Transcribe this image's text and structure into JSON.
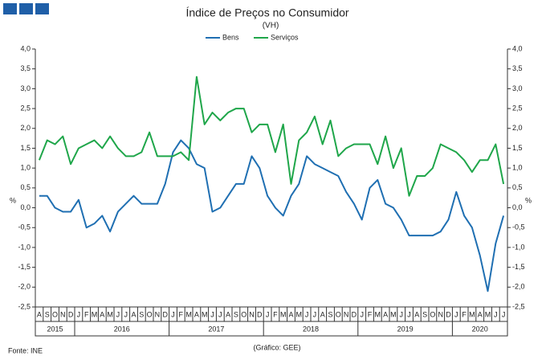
{
  "chart_data": {
    "type": "line",
    "title": "Índice de Preços no Consumidor",
    "subtitle": "(VH)",
    "y_label": "%",
    "y2_label": "%",
    "source": "Fonte: INE",
    "credit": "(Gráfico: GEE)",
    "categories": [
      "A",
      "S",
      "O",
      "N",
      "D",
      "J",
      "F",
      "M",
      "A",
      "M",
      "J",
      "J",
      "A",
      "S",
      "O",
      "N",
      "D",
      "J",
      "F",
      "M",
      "A",
      "M",
      "J",
      "J",
      "A",
      "S",
      "O",
      "N",
      "D",
      "J",
      "F",
      "M",
      "A",
      "M",
      "J",
      "J",
      "A",
      "S",
      "O",
      "N",
      "D",
      "J",
      "F",
      "M",
      "A",
      "M",
      "J",
      "J",
      "A",
      "S",
      "O",
      "N",
      "D",
      "J",
      "F",
      "M",
      "A",
      "M",
      "J",
      "J"
    ],
    "x_groups": [
      {
        "label": "2015",
        "count": 5
      },
      {
        "label": "2016",
        "count": 12
      },
      {
        "label": "2017",
        "count": 12
      },
      {
        "label": "2018",
        "count": 12
      },
      {
        "label": "2019",
        "count": 12
      },
      {
        "label": "2020",
        "count": 7
      }
    ],
    "series": [
      {
        "name": "Bens",
        "color": "#1f6fb2",
        "values": [
          0.3,
          0.3,
          0.0,
          -0.1,
          -0.1,
          0.2,
          -0.5,
          -0.4,
          -0.2,
          -0.6,
          -0.1,
          0.1,
          0.3,
          0.1,
          0.1,
          0.1,
          0.6,
          1.4,
          1.7,
          1.5,
          1.1,
          1.0,
          -0.1,
          0.0,
          0.3,
          0.6,
          0.6,
          1.3,
          1.0,
          0.3,
          0.0,
          -0.2,
          0.3,
          0.6,
          1.3,
          1.1,
          1.0,
          0.9,
          0.8,
          0.4,
          0.1,
          -0.3,
          0.5,
          0.7,
          0.1,
          0.0,
          -0.3,
          -0.7,
          -0.7,
          -0.7,
          -0.7,
          -0.6,
          -0.3,
          0.4,
          -0.2,
          -0.5,
          -1.2,
          -2.1,
          -0.9,
          -0.2
        ]
      },
      {
        "name": "Serviços",
        "color": "#1fa64a",
        "values": [
          1.2,
          1.7,
          1.6,
          1.8,
          1.1,
          1.5,
          1.6,
          1.7,
          1.5,
          1.8,
          1.5,
          1.3,
          1.3,
          1.4,
          1.9,
          1.3,
          1.3,
          1.3,
          1.4,
          1.2,
          3.3,
          2.1,
          2.4,
          2.2,
          2.4,
          2.5,
          2.5,
          1.9,
          2.1,
          2.1,
          1.4,
          2.1,
          0.6,
          1.7,
          1.9,
          2.3,
          1.6,
          2.2,
          1.3,
          1.5,
          1.6,
          1.6,
          1.6,
          1.1,
          1.8,
          1.0,
          1.5,
          0.3,
          0.8,
          0.8,
          1.0,
          1.6,
          1.5,
          1.4,
          1.2,
          0.9,
          1.2,
          1.2,
          1.6,
          0.6
        ]
      }
    ],
    "ylim": [
      -2.5,
      4.0
    ],
    "yticks": [
      {
        "value": -2.5,
        "label": "-2,5"
      },
      {
        "value": -2.0,
        "label": "-2,0"
      },
      {
        "value": -1.5,
        "label": "-1,5"
      },
      {
        "value": -1.0,
        "label": "-1,0"
      },
      {
        "value": -0.5,
        "label": "-0,5"
      },
      {
        "value": 0.0,
        "label": "0,0"
      },
      {
        "value": 0.5,
        "label": "0,5"
      },
      {
        "value": 1.0,
        "label": "1,0"
      },
      {
        "value": 1.5,
        "label": "1,5"
      },
      {
        "value": 2.0,
        "label": "2,0"
      },
      {
        "value": 2.5,
        "label": "2,5"
      },
      {
        "value": 3.0,
        "label": "3,0"
      },
      {
        "value": 3.5,
        "label": "3,5"
      },
      {
        "value": 4.0,
        "label": "4,0"
      }
    ],
    "legend": "top"
  }
}
